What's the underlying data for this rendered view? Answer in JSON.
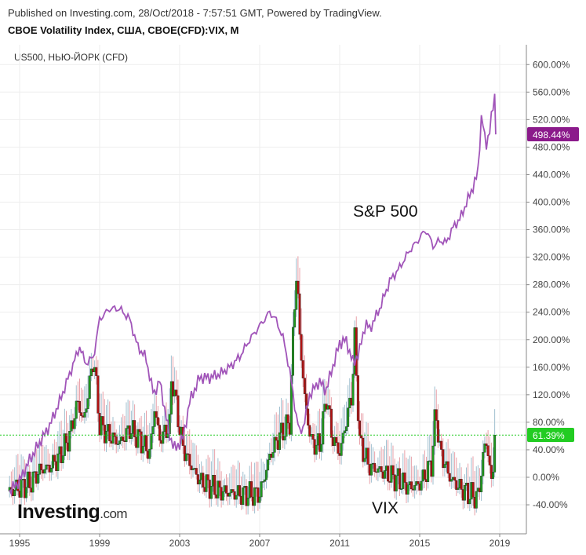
{
  "header": {
    "published": "Published on Investing.com, 28/Oct/2018 - 7:57:51 GMT, Powered by TradingView.",
    "instrument": "CBOE Volatility Index, США, CBOE(CFD):VIX, M"
  },
  "legend": {
    "comparison": "US500, НЬЮ-ЙОРК (CFD)"
  },
  "annotations": {
    "sp500": "S&P 500",
    "vix": "VIX"
  },
  "logo": {
    "main": "Investing",
    "suffix": ".com"
  },
  "colors": {
    "sp500_line": "#a155b9",
    "candle_up": "#1e9b1e",
    "candle_down": "#b31111",
    "last_sp500_badge": "#8b1a8b",
    "last_vix_badge": "#22cc22",
    "grid": "#eeeeee"
  },
  "chart_data": {
    "type": "line",
    "title": "CBOE Volatility Index, США, CBOE(CFD):VIX, M",
    "ylabel": "%",
    "ylim": [
      -70,
      640
    ],
    "y_ticks": [
      "600.00%",
      "560.00%",
      "520.00%",
      "480.00%",
      "440.00%",
      "400.00%",
      "360.00%",
      "320.00%",
      "280.00%",
      "240.00%",
      "200.00%",
      "160.00%",
      "120.00%",
      "80.00%",
      "40.00%",
      "0.00%",
      "-40.00%"
    ],
    "x_ticks": [
      "1995",
      "1999",
      "2003",
      "2007",
      "2011",
      "2015",
      "2019"
    ],
    "last_values": {
      "sp500": "498.44%",
      "vix": "61.39%"
    },
    "series": [
      {
        "name": "US500, НЬЮ-ЙОРК (CFD)",
        "x": [
          1994.5,
          1995.0,
          1995.5,
          1996.0,
          1996.5,
          1997.0,
          1997.5,
          1998.0,
          1998.3,
          1998.7,
          1999.0,
          1999.5,
          2000.0,
          2000.5,
          2000.9,
          2001.3,
          2001.7,
          2002.0,
          2002.5,
          2002.8,
          2003.2,
          2003.5,
          2004.0,
          2004.5,
          2005.0,
          2005.5,
          2006.0,
          2006.5,
          2007.0,
          2007.5,
          2007.8,
          2008.2,
          2008.5,
          2008.8,
          2009.0,
          2009.2,
          2009.5,
          2010.0,
          2010.3,
          2010.5,
          2011.0,
          2011.3,
          2011.7,
          2012.0,
          2012.3,
          2012.5,
          2013.0,
          2013.5,
          2014.0,
          2014.5,
          2014.8,
          2015.3,
          2015.7,
          2016.0,
          2016.3,
          2016.7,
          2017.0,
          2017.5,
          2017.9,
          2018.1,
          2018.3,
          2018.5,
          2018.75,
          2018.8
        ],
        "y": [
          -20,
          -5,
          25,
          50,
          75,
          110,
          150,
          190,
          165,
          175,
          230,
          245,
          245,
          230,
          190,
          175,
          120,
          140,
          60,
          40,
          60,
          110,
          145,
          145,
          150,
          160,
          175,
          200,
          220,
          240,
          230,
          200,
          155,
          95,
          65,
          75,
          120,
          140,
          125,
          145,
          195,
          200,
          165,
          185,
          225,
          215,
          245,
          285,
          305,
          330,
          340,
          360,
          335,
          345,
          340,
          365,
          375,
          410,
          440,
          530,
          480,
          505,
          555,
          498.44
        ]
      },
      {
        "name": "VIX",
        "x": [
          1994.5,
          1995.0,
          1995.5,
          1996.0,
          1996.5,
          1997.0,
          1997.5,
          1997.9,
          1998.2,
          1998.7,
          1999.0,
          1999.5,
          2000.0,
          2000.5,
          2001.0,
          2001.5,
          2001.75,
          2002.0,
          2002.5,
          2002.6,
          2003.0,
          2003.2,
          2003.5,
          2004.0,
          2005.0,
          2006.0,
          2006.5,
          2007.0,
          2007.5,
          2007.8,
          2008.0,
          2008.5,
          2008.7,
          2008.85,
          2009.0,
          2009.3,
          2009.6,
          2010.0,
          2010.35,
          2010.6,
          2011.0,
          2011.6,
          2011.75,
          2012.0,
          2012.5,
          2013.0,
          2014.0,
          2014.5,
          2015.0,
          2015.6,
          2015.8,
          2016.0,
          2016.5,
          2017.0,
          2017.5,
          2017.9,
          2018.1,
          2018.3,
          2018.6,
          2018.8
        ],
        "y": [
          -20,
          -15,
          -10,
          10,
          15,
          30,
          60,
          110,
          80,
          175,
          75,
          60,
          50,
          70,
          55,
          35,
          100,
          55,
          75,
          150,
          70,
          40,
          20,
          -5,
          -20,
          -25,
          -25,
          -25,
          30,
          50,
          60,
          80,
          230,
          300,
          205,
          100,
          50,
          45,
          120,
          60,
          35,
          120,
          200,
          50,
          15,
          10,
          -5,
          -15,
          -10,
          20,
          100,
          40,
          0,
          -15,
          -25,
          -30,
          10,
          60,
          -10,
          61.39
        ]
      }
    ]
  }
}
